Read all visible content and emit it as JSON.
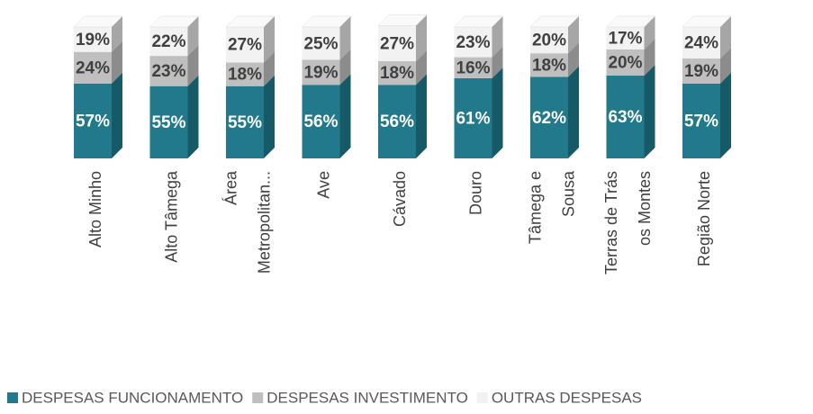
{
  "chart_data": {
    "type": "stacked-bar-3d",
    "categories": [
      "Alto Minho",
      "Alto Tâmega",
      "Área Metropolitan...",
      "Ave",
      "Cávado",
      "Douro",
      "Tâmega e Sousa",
      "Terras de Trás os Montes",
      "Região Norte"
    ],
    "series": [
      {
        "name": "DESPESAS FUNCIONAMENTO",
        "color": "#21798b",
        "side": "#165a68",
        "values": [
          57,
          55,
          55,
          56,
          56,
          61,
          62,
          63,
          57
        ],
        "value_labels": [
          "57%",
          "55%",
          "55%",
          "56%",
          "56%",
          "61%",
          "62%",
          "63%",
          "57%"
        ]
      },
      {
        "name": "DESPESAS INVESTIMENTO",
        "color": "#bfbfbf",
        "side": "#8c8c8c",
        "values": [
          24,
          23,
          18,
          19,
          18,
          16,
          18,
          20,
          19
        ],
        "value_labels": [
          "24%",
          "23%",
          "18%",
          "19%",
          "18%",
          "16%",
          "18%",
          "20%",
          "19%"
        ]
      },
      {
        "name": "OUTRAS DESPESAS",
        "color": "#f2f2f2",
        "side": "#a6a6a6",
        "values": [
          19,
          22,
          27,
          25,
          27,
          23,
          20,
          17,
          24
        ],
        "value_labels": [
          "19%",
          "22%",
          "27%",
          "25%",
          "27%",
          "23%",
          "20%",
          "17%",
          "24%"
        ]
      }
    ],
    "ylim": [
      0,
      100
    ]
  }
}
